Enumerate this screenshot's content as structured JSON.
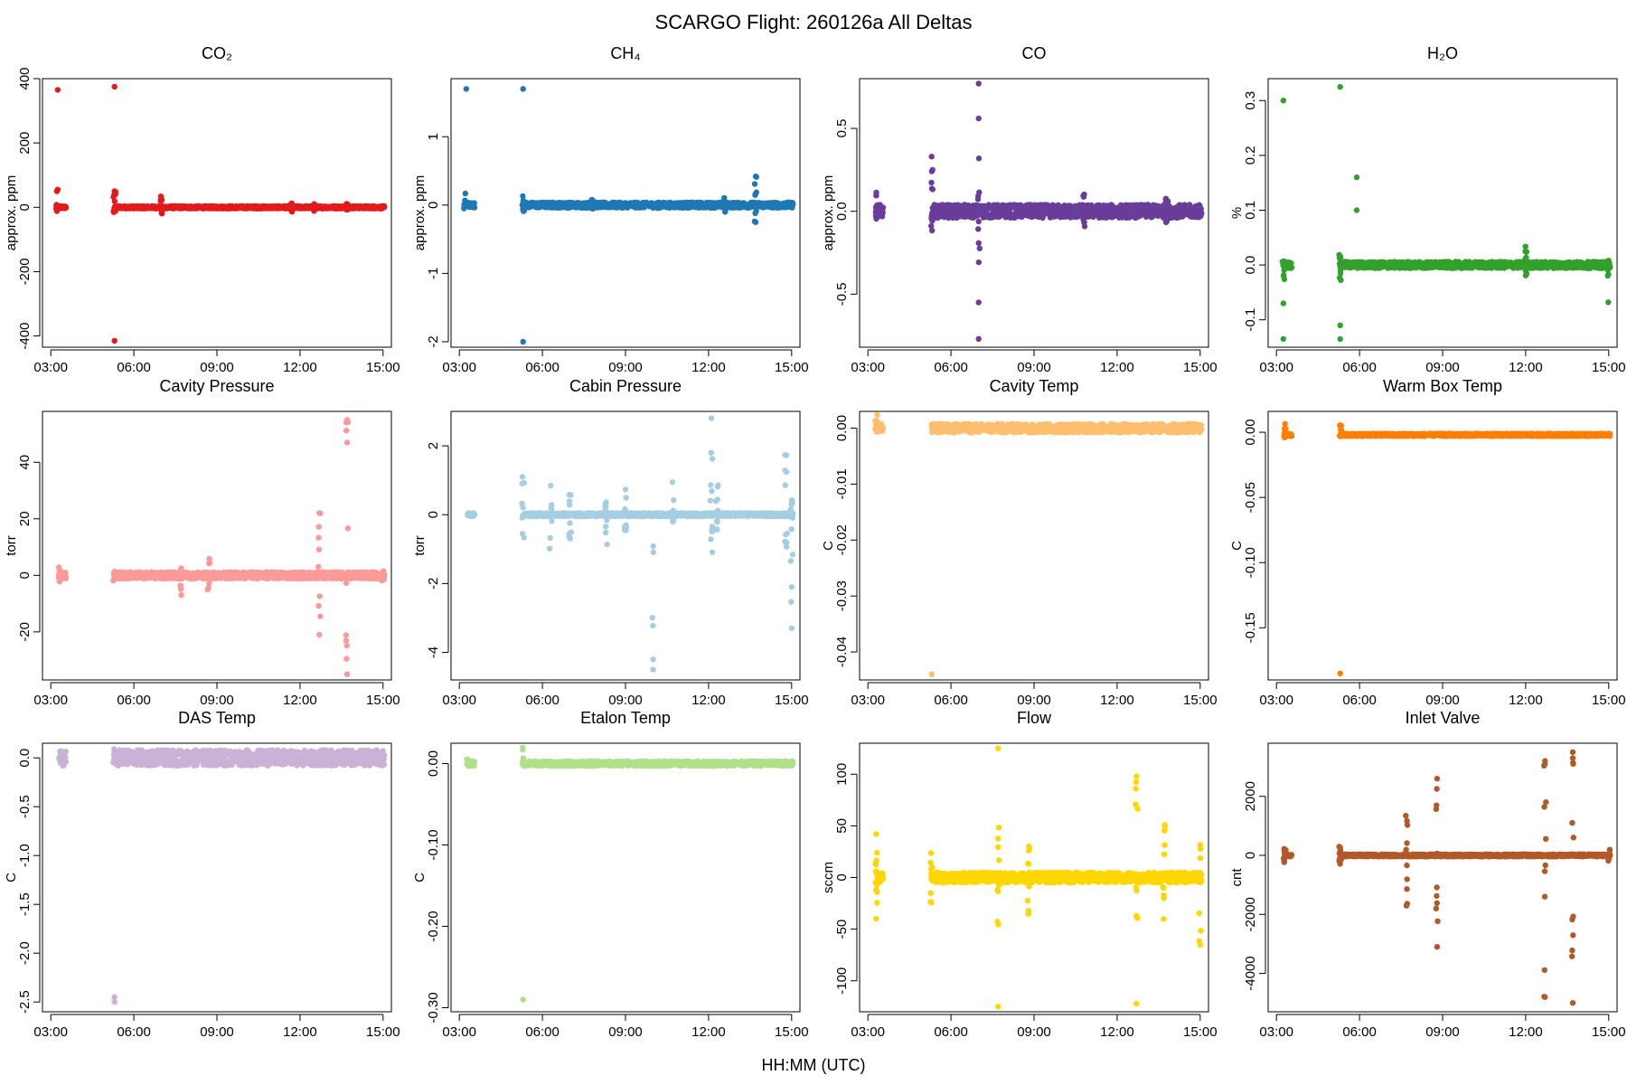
{
  "figure": {
    "title": "SCARGO Flight: 260126a  All Deltas",
    "xlabel": "HH:MM (UTC)"
  },
  "chart_data": [
    {
      "type": "scatter",
      "title": "CO₂",
      "ylabel": "approx. ppm",
      "color": "#e31a1c",
      "xlim": [
        2.7,
        15.3
      ],
      "ylim": [
        -435,
        400
      ],
      "xticks": [
        "03:00",
        "06:00",
        "09:00",
        "12:00",
        "15:00"
      ],
      "yticks": [
        -400,
        -200,
        0,
        200,
        400
      ],
      "ytick_labels": [
        "-400",
        "-200",
        "0",
        "200",
        "400"
      ],
      "baseline": {
        "value": 0,
        "spread": 4,
        "gaps": [
          [
            3.3,
            3.55
          ],
          [
            5.3,
            15.05
          ]
        ]
      },
      "bursts": [
        [
          3.2,
          55,
          -15
        ],
        [
          5.3,
          50,
          -20
        ],
        [
          7.0,
          35,
          -30
        ],
        [
          11.7,
          15,
          -15
        ],
        [
          12.5,
          12,
          -12
        ],
        [
          13.7,
          14,
          -14
        ]
      ],
      "points": [
        [
          3.25,
          365
        ],
        [
          5.3,
          375
        ],
        [
          3.25,
          55
        ],
        [
          5.3,
          50
        ],
        [
          5.3,
          -415
        ]
      ]
    },
    {
      "type": "scatter",
      "title": "CH₄",
      "ylabel": "approx. ppm",
      "color": "#1f78b4",
      "xlim": [
        2.7,
        15.3
      ],
      "ylim": [
        -2.08,
        1.85
      ],
      "xticks": [
        "03:00",
        "06:00",
        "09:00",
        "12:00",
        "15:00"
      ],
      "yticks": [
        -2,
        -1,
        0,
        1
      ],
      "ytick_labels": [
        "-2",
        "-1",
        "0",
        "1"
      ],
      "baseline": {
        "value": 0,
        "spread": 0.04,
        "gaps": [
          [
            3.3,
            3.55
          ],
          [
            5.3,
            15.05
          ]
        ]
      },
      "bursts": [
        [
          3.2,
          0.2,
          -0.05
        ],
        [
          5.3,
          0.2,
          -0.1
        ],
        [
          7.8,
          0.1,
          -0.06
        ],
        [
          10.2,
          0.05,
          -0.05
        ],
        [
          12.6,
          0.12,
          -0.12
        ],
        [
          13.7,
          0.42,
          -0.25
        ]
      ],
      "points": [
        [
          3.25,
          1.7
        ],
        [
          5.3,
          1.7
        ],
        [
          5.3,
          -2.0
        ],
        [
          13.7,
          0.42
        ],
        [
          13.7,
          -0.25
        ]
      ]
    },
    {
      "type": "scatter",
      "title": "CO",
      "ylabel": "approx. ppm",
      "color": "#6a3d9a",
      "xlim": [
        2.7,
        15.3
      ],
      "ylim": [
        -0.82,
        0.8
      ],
      "xticks": [
        "03:00",
        "06:00",
        "09:00",
        "12:00",
        "15:00"
      ],
      "yticks": [
        -0.5,
        0,
        0.5
      ],
      "ytick_labels": [
        "-0.5",
        "0.0",
        "0.5"
      ],
      "baseline": {
        "value": 0,
        "spread": 0.04,
        "gaps": [
          [
            3.3,
            3.55
          ],
          [
            5.3,
            15.05
          ]
        ]
      },
      "bursts": [
        [
          3.3,
          0.12,
          -0.05
        ],
        [
          5.3,
          0.33,
          -0.12
        ],
        [
          7.0,
          0.35,
          -0.33
        ],
        [
          10.8,
          0.12,
          -0.1
        ],
        [
          13.8,
          0.08,
          -0.08
        ]
      ],
      "points": [
        [
          7.0,
          0.77
        ],
        [
          7.0,
          0.56
        ],
        [
          7.0,
          -0.55
        ],
        [
          7.0,
          -0.77
        ],
        [
          5.3,
          0.33
        ]
      ]
    },
    {
      "type": "scatter",
      "title": "H₂O",
      "ylabel": "%",
      "color": "#33a02c",
      "xlim": [
        2.7,
        15.3
      ],
      "ylim": [
        -0.15,
        0.34
      ],
      "xticks": [
        "03:00",
        "06:00",
        "09:00",
        "12:00",
        "15:00"
      ],
      "yticks": [
        -0.1,
        0,
        0.1,
        0.2,
        0.3
      ],
      "ytick_labels": [
        "-0.1",
        "0.0",
        "0.1",
        "0.2",
        "0.3"
      ],
      "baseline": {
        "value": 0,
        "spread": 0.006,
        "gaps": [
          [
            3.3,
            3.55
          ],
          [
            5.3,
            15.05
          ]
        ]
      },
      "bursts": [
        [
          3.25,
          0.01,
          -0.03
        ],
        [
          5.3,
          0.02,
          -0.03
        ],
        [
          12.0,
          0.04,
          -0.02
        ],
        [
          15.0,
          0.02,
          -0.07
        ]
      ],
      "points": [
        [
          3.25,
          0.3
        ],
        [
          5.3,
          0.325
        ],
        [
          3.25,
          -0.07
        ],
        [
          3.25,
          -0.135
        ],
        [
          5.3,
          -0.11
        ],
        [
          5.3,
          -0.135
        ],
        [
          5.9,
          0.16
        ],
        [
          5.9,
          0.1
        ]
      ]
    },
    {
      "type": "scatter",
      "title": "Cavity Pressure",
      "ylabel": "torr",
      "color": "#fb9a99",
      "xlim": [
        2.7,
        15.3
      ],
      "ylim": [
        -37,
        58
      ],
      "xticks": [
        "03:00",
        "06:00",
        "09:00",
        "12:00",
        "15:00"
      ],
      "yticks": [
        -20,
        0,
        20,
        40
      ],
      "ytick_labels": [
        "-20",
        "0",
        "20",
        "40"
      ],
      "baseline": {
        "value": 0,
        "spread": 1.2,
        "gaps": [
          [
            3.3,
            3.55
          ],
          [
            5.3,
            15.05
          ]
        ]
      },
      "bursts": [
        [
          3.3,
          3,
          -3
        ],
        [
          5.3,
          2,
          -2
        ],
        [
          7.7,
          7,
          -7
        ],
        [
          8.7,
          8,
          -6
        ],
        [
          12.7,
          22,
          -21
        ],
        [
          13.7,
          55,
          -35
        ],
        [
          15.0,
          2,
          -2
        ]
      ],
      "points": [
        [
          13.7,
          55
        ],
        [
          13.7,
          47
        ],
        [
          13.7,
          -35
        ],
        [
          12.7,
          22
        ],
        [
          12.7,
          -21
        ]
      ]
    },
    {
      "type": "scatter",
      "title": "Cabin Pressure",
      "ylabel": "torr",
      "color": "#a6cee3",
      "xlim": [
        2.7,
        15.3
      ],
      "ylim": [
        -4.8,
        3.0
      ],
      "xticks": [
        "03:00",
        "06:00",
        "09:00",
        "12:00",
        "15:00"
      ],
      "yticks": [
        -4,
        -2,
        0,
        2
      ],
      "ytick_labels": [
        "-4",
        "-2",
        "0",
        "2"
      ],
      "baseline": {
        "value": 0,
        "spread": 0.05,
        "gaps": [
          [
            3.3,
            3.55
          ],
          [
            5.3,
            15.05
          ]
        ]
      },
      "bursts": [
        [
          5.3,
          1.3,
          -0.8
        ],
        [
          6.3,
          1.0,
          -1.1
        ],
        [
          7.0,
          0.6,
          -0.7
        ],
        [
          8.3,
          0.5,
          -1.0
        ],
        [
          9.0,
          0.8,
          -0.6
        ],
        [
          10.0,
          -0.0,
          -4.5
        ],
        [
          10.7,
          1.0,
          -0.6
        ],
        [
          12.1,
          2.8,
          -1.3
        ],
        [
          12.3,
          1.0,
          -0.5
        ],
        [
          14.8,
          1.9,
          -1.0
        ],
        [
          15.0,
          0.5,
          -3.3
        ]
      ],
      "points": [
        [
          12.1,
          2.8
        ],
        [
          10.0,
          -4.5
        ],
        [
          10.0,
          -4.2
        ],
        [
          15.0,
          -3.3
        ],
        [
          15.0,
          -2.1
        ]
      ]
    },
    {
      "type": "scatter",
      "title": "Cavity Temp",
      "ylabel": "C",
      "color": "#fdbf6f",
      "xlim": [
        2.7,
        15.3
      ],
      "ylim": [
        -0.045,
        0.003
      ],
      "xticks": [
        "03:00",
        "06:00",
        "09:00",
        "12:00",
        "15:00"
      ],
      "yticks": [
        -0.04,
        -0.03,
        -0.02,
        -0.01,
        0
      ],
      "ytick_labels": [
        "-0.04",
        "-0.03",
        "-0.02",
        "-0.01",
        "0.00"
      ],
      "baseline": {
        "value": 0,
        "spread": 0.0008,
        "gaps": [
          [
            3.3,
            3.55
          ],
          [
            5.3,
            15.05
          ]
        ]
      },
      "bursts": [
        [
          3.3,
          0.0025,
          -0.0005
        ]
      ],
      "points": [
        [
          5.3,
          -0.044
        ]
      ]
    },
    {
      "type": "scatter",
      "title": "Warm Box Temp",
      "ylabel": "C",
      "color": "#ff7f00",
      "xlim": [
        2.7,
        15.3
      ],
      "ylim": [
        -0.19,
        0.016
      ],
      "xticks": [
        "03:00",
        "06:00",
        "09:00",
        "12:00",
        "15:00"
      ],
      "yticks": [
        -0.15,
        -0.1,
        -0.05,
        0
      ],
      "ytick_labels": [
        "-0.15",
        "-0.10",
        "-0.05",
        "0.00"
      ],
      "baseline": {
        "value": -0.002,
        "spread": 0.001,
        "gaps": [
          [
            3.3,
            3.55
          ],
          [
            5.3,
            15.05
          ]
        ]
      },
      "bursts": [
        [
          3.3,
          0.014,
          -0.002
        ],
        [
          5.3,
          0.014,
          -0.002
        ]
      ],
      "points": [
        [
          5.3,
          -0.185
        ]
      ]
    },
    {
      "type": "scatter",
      "title": "DAS Temp",
      "ylabel": "C",
      "color": "#cab2d6",
      "xlim": [
        2.7,
        15.3
      ],
      "ylim": [
        -2.6,
        0.15
      ],
      "xticks": [
        "03:00",
        "06:00",
        "09:00",
        "12:00",
        "15:00"
      ],
      "yticks": [
        -2.5,
        -2,
        -1.5,
        -1,
        -0.5,
        0
      ],
      "ytick_labels": [
        "-2.5",
        "-2.0",
        "-1.5",
        "-1.0",
        "-0.5",
        "0.0"
      ],
      "baseline": {
        "value": 0,
        "spread": 0.08,
        "gaps": [
          [
            3.3,
            3.55
          ],
          [
            5.3,
            15.05
          ]
        ]
      },
      "bursts": [
        [
          5.3,
          0.1,
          -0.05
        ]
      ],
      "points": [
        [
          5.3,
          -2.45
        ],
        [
          5.3,
          -2.5
        ]
      ]
    },
    {
      "type": "scatter",
      "title": "Etalon Temp",
      "ylabel": "C",
      "color": "#b2df8a",
      "xlim": [
        2.7,
        15.3
      ],
      "ylim": [
        -0.305,
        0.025
      ],
      "xticks": [
        "03:00",
        "06:00",
        "09:00",
        "12:00",
        "15:00"
      ],
      "yticks": [
        -0.3,
        -0.2,
        -0.1,
        0
      ],
      "ytick_labels": [
        "-0.30",
        "-0.20",
        "-0.10",
        "0.00"
      ],
      "baseline": {
        "value": 0,
        "spread": 0.003,
        "gaps": [
          [
            3.3,
            3.55
          ],
          [
            5.3,
            15.05
          ]
        ]
      },
      "bursts": [
        [
          3.3,
          0.02,
          -0.002
        ],
        [
          5.3,
          0.02,
          -0.002
        ]
      ],
      "points": [
        [
          5.3,
          -0.29
        ]
      ]
    },
    {
      "type": "scatter",
      "title": "Flow",
      "ylabel": "sccm",
      "color": "#ffd700",
      "xlim": [
        2.7,
        15.3
      ],
      "ylim": [
        -130,
        130
      ],
      "xticks": [
        "03:00",
        "06:00",
        "09:00",
        "12:00",
        "15:00"
      ],
      "yticks": [
        -100,
        -50,
        0,
        50,
        100
      ],
      "ytick_labels": [
        "-100",
        "-50",
        "0",
        "50",
        "100"
      ],
      "baseline": {
        "value": 0,
        "spread": 5,
        "gaps": [
          [
            3.3,
            3.55
          ],
          [
            5.3,
            15.05
          ]
        ]
      },
      "bursts": [
        [
          3.3,
          25,
          -25
        ],
        [
          5.3,
          25,
          -25
        ],
        [
          7.7,
          50,
          -50
        ],
        [
          8.8,
          60,
          -50
        ],
        [
          12.7,
          95,
          -45
        ],
        [
          13.7,
          55,
          -45
        ],
        [
          15.0,
          65,
          -65
        ]
      ],
      "points": [
        [
          7.7,
          125
        ],
        [
          7.7,
          -125
        ],
        [
          12.7,
          98
        ],
        [
          12.7,
          -122
        ],
        [
          15.0,
          -65
        ],
        [
          3.3,
          42
        ],
        [
          3.3,
          -40
        ]
      ]
    },
    {
      "type": "scatter",
      "title": "Inlet Valve",
      "ylabel": "cnt",
      "color": "#b15928",
      "xlim": [
        2.7,
        15.3
      ],
      "ylim": [
        -5300,
        3800
      ],
      "xticks": [
        "03:00",
        "06:00",
        "09:00",
        "12:00",
        "15:00"
      ],
      "yticks": [
        -4000,
        -2000,
        0,
        2000
      ],
      "ytick_labels": [
        "-4000",
        "-2000",
        "0",
        "2000"
      ],
      "baseline": {
        "value": 0,
        "spread": 40,
        "gaps": [
          [
            3.3,
            3.55
          ],
          [
            5.3,
            15.05
          ]
        ]
      },
      "bursts": [
        [
          3.3,
          350,
          -350
        ],
        [
          5.3,
          300,
          -300
        ],
        [
          7.7,
          1700,
          -2200
        ],
        [
          8.8,
          2600,
          -3100
        ],
        [
          12.7,
          3200,
          -4800
        ],
        [
          13.7,
          3500,
          -5000
        ],
        [
          15.0,
          200,
          -200
        ]
      ],
      "points": [
        [
          13.7,
          3500
        ],
        [
          13.7,
          -5000
        ],
        [
          12.7,
          3200
        ],
        [
          12.7,
          -4800
        ],
        [
          8.8,
          2600
        ],
        [
          8.8,
          -3100
        ]
      ]
    }
  ]
}
